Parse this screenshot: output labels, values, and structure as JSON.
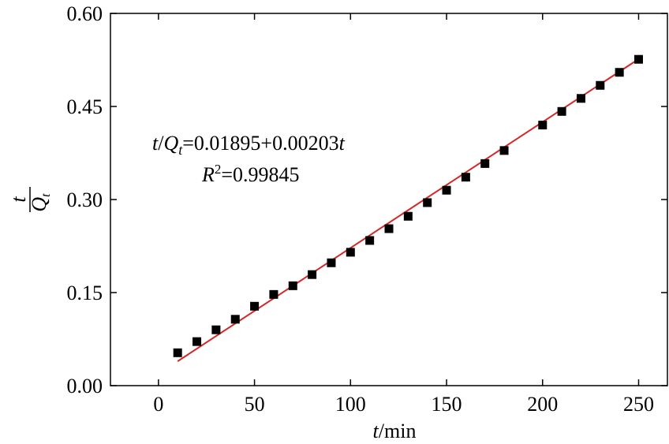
{
  "chart_data": {
    "type": "scatter",
    "xlabel": {
      "var": "t",
      "unit": "/min"
    },
    "ylabel": {
      "numerator": "t",
      "denominator": "Q",
      "subscript": "t"
    },
    "xlim": [
      -25,
      265
    ],
    "ylim": [
      0,
      0.6
    ],
    "x_ticks": [
      0,
      50,
      100,
      150,
      200,
      250
    ],
    "x_tick_labels": [
      "0",
      "50",
      "100",
      "150",
      "200",
      "250"
    ],
    "y_ticks": [
      0,
      0.15,
      0.3,
      0.45,
      0.6
    ],
    "y_tick_labels": [
      "0.00",
      "0.15",
      "0.30",
      "0.45",
      "0.60"
    ],
    "grid": false,
    "series": [
      {
        "marker": "square",
        "color": "#000000",
        "x": [
          10,
          20,
          30,
          40,
          50,
          60,
          70,
          80,
          90,
          100,
          110,
          120,
          130,
          140,
          150,
          160,
          170,
          180,
          200,
          210,
          220,
          230,
          240,
          250
        ],
        "y": [
          0.053,
          0.071,
          0.09,
          0.107,
          0.128,
          0.147,
          0.161,
          0.179,
          0.198,
          0.215,
          0.234,
          0.253,
          0.273,
          0.295,
          0.315,
          0.336,
          0.358,
          0.379,
          0.42,
          0.442,
          0.463,
          0.484,
          0.505,
          0.526
        ]
      }
    ],
    "fit_line": {
      "color": "#d62728",
      "intercept": 0.01895,
      "slope": 0.00203,
      "x_range": [
        10,
        250
      ]
    },
    "annotations": {
      "equation": {
        "lhs_num": "t",
        "slash": "/",
        "lhs_den": "Q",
        "lhs_sub": "t",
        "rhs": "=0.01895+0.00203",
        "rhs_var": "t"
      },
      "r2": {
        "var": "R",
        "sup": "2",
        "rhs": "=0.99845"
      }
    }
  }
}
